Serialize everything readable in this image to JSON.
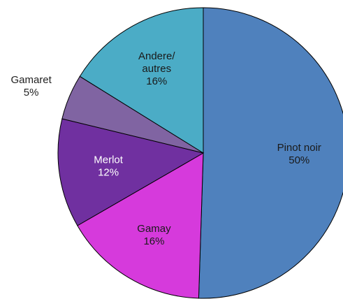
{
  "chart_data": {
    "type": "pie",
    "categories": [
      "Pinot noir",
      "Gamay",
      "Merlot",
      "Gamaret",
      "Andere/\nautres"
    ],
    "values": [
      50,
      16,
      12,
      5,
      16
    ],
    "value_labels": [
      "50%",
      "16%",
      "12%",
      "5%",
      "16%"
    ],
    "colors": [
      "#4f81bd",
      "#d63adc",
      "#7030a0",
      "#8064a2",
      "#4bacc6"
    ]
  }
}
